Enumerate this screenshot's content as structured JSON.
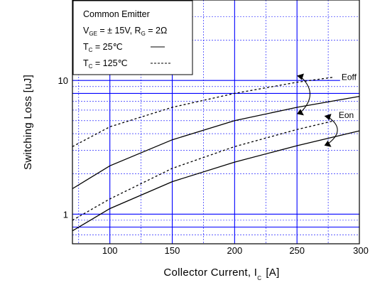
{
  "chart_data": {
    "type": "line",
    "xlabel": "Collector Current, I",
    "xlabel_sub": "C",
    "xlabel_unit": "[A]",
    "ylabel": "Switching Loss [uJ]",
    "xlim": [
      70,
      300
    ],
    "ylim": [
      0.6,
      40
    ],
    "yscale": "log",
    "xticks": [
      100,
      150,
      200,
      250,
      300
    ],
    "yticks": [
      1,
      10
    ],
    "grid": true,
    "legend": {
      "placement": "top-left",
      "title": "Common Emitter",
      "line2": {
        "v": "V",
        "v_sub": "GE",
        "mid": " = ± 15V, R",
        "r_sub": "G",
        "end": " = 2Ω"
      },
      "line3": {
        "t": "T",
        "t_sub": "C",
        "text": " =   25℃",
        "style": "solid"
      },
      "line4": {
        "t": "T",
        "t_sub": "C",
        "text": " = 125℃",
        "style": "dashed"
      }
    },
    "series": [
      {
        "name": "Eoff",
        "label": "Eoff",
        "tc": "125℃",
        "style": "dashed",
        "x": [
          70,
          100,
          150,
          200,
          250,
          280
        ],
        "y": [
          3.2,
          4.5,
          6.3,
          8.0,
          9.7,
          10.6
        ]
      },
      {
        "name": "Eoff",
        "label": "",
        "tc": "25℃",
        "style": "solid",
        "x": [
          70,
          100,
          150,
          200,
          250,
          300
        ],
        "y": [
          1.55,
          2.3,
          3.6,
          5.0,
          6.3,
          7.6
        ]
      },
      {
        "name": "Eon",
        "label": "Eon",
        "tc": "125℃",
        "style": "dashed",
        "x": [
          70,
          100,
          150,
          200,
          250,
          280
        ],
        "y": [
          0.9,
          1.3,
          2.2,
          3.2,
          4.3,
          5.0
        ]
      },
      {
        "name": "Eon",
        "label": "",
        "tc": "25℃",
        "style": "solid",
        "x": [
          70,
          100,
          150,
          200,
          250,
          300
        ],
        "y": [
          0.75,
          1.1,
          1.75,
          2.45,
          3.25,
          4.2
        ]
      }
    ],
    "colors": {
      "grid": "#0000ff",
      "curve": "#000000",
      "frame": "#000000"
    }
  }
}
